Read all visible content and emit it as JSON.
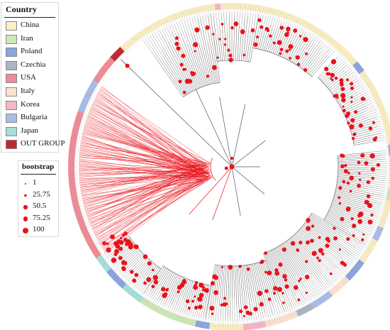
{
  "legend": {
    "title": "Country",
    "items": [
      {
        "label": "China",
        "color": "#fbefc3"
      },
      {
        "label": "Iran",
        "color": "#cfe8b4"
      },
      {
        "label": "Poland",
        "color": "#8aa5dd"
      },
      {
        "label": "Czechia",
        "color": "#a9b4c6"
      },
      {
        "label": "USA",
        "color": "#f08b96"
      },
      {
        "label": "Italy",
        "color": "#fde2d0"
      },
      {
        "label": "Korea",
        "color": "#f7b6c4"
      },
      {
        "label": "Bulgaria",
        "color": "#a9bde8"
      },
      {
        "label": "Japan",
        "color": "#a6e0da"
      },
      {
        "label": "OUT GROUP",
        "color": "#c0262e"
      }
    ]
  },
  "bootstrap_legend": {
    "title": "bootstrap",
    "items": [
      {
        "label": "1",
        "value": 1
      },
      {
        "label": "25.75",
        "value": 25.75
      },
      {
        "label": "50.5",
        "value": 50.5
      },
      {
        "label": "75.25",
        "value": 75.25
      },
      {
        "label": "100",
        "value": 100
      }
    ]
  },
  "tree": {
    "layout": "circular",
    "branch_color": "#555555",
    "highlight_branch_color": "#e8131b",
    "node_color": "#e8131b"
  }
}
